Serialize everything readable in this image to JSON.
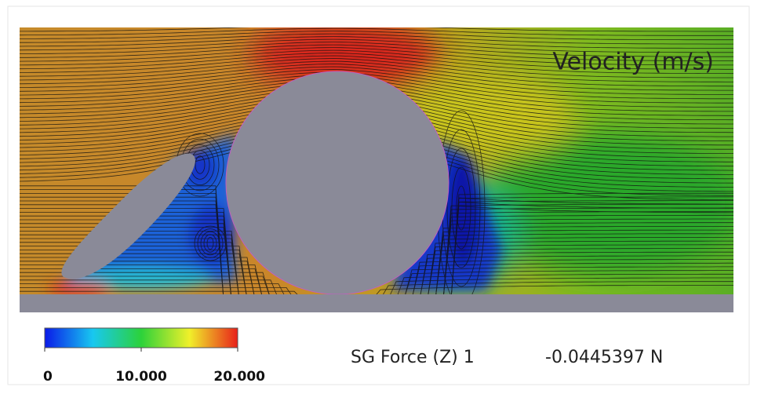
{
  "field": {
    "label": "Velocity (m/s)"
  },
  "colorbar": {
    "range": [
      0,
      20
    ],
    "ticks": [
      {
        "value": 0,
        "label": "0"
      },
      {
        "value": 10,
        "label": "10.000"
      },
      {
        "value": 20,
        "label": "20.000"
      }
    ]
  },
  "report": {
    "name": "SG Force (Z) 1",
    "value": "-0.0445397 N"
  }
}
